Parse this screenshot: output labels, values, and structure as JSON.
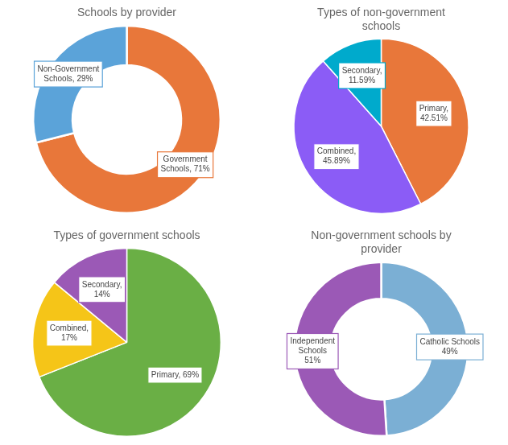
{
  "chart_data": [
    {
      "type": "doughnut",
      "title": "Schools by provider",
      "values": [
        71,
        29
      ],
      "value_labels": [
        "Government\nSchools, 71%",
        "Non-Government\nSchools, 29%"
      ],
      "data_labels": true,
      "colors": [
        "#E8773A",
        "#5BA3D9"
      ]
    },
    {
      "type": "pie",
      "title": "Types of non-government\nschools",
      "values": [
        42.51,
        45.89,
        11.59
      ],
      "value_labels": [
        "Primary,\n42.51%",
        "Combined,\n45.89%",
        "Secondary,\n11.59%"
      ],
      "data_labels": true,
      "colors": [
        "#E8773A",
        "#8B5CF6",
        "#00AACC"
      ]
    },
    {
      "type": "pie",
      "title": "Types of government schools",
      "values": [
        69,
        17,
        14
      ],
      "value_labels": [
        "Primary, 69%",
        "Combined,\n17%",
        "Secondary,\n14%"
      ],
      "data_labels": true,
      "colors": [
        "#6AAF45",
        "#F5C518",
        "#9B59B6"
      ]
    },
    {
      "type": "doughnut",
      "title": "Non-government schools by\nprovider",
      "values": [
        49,
        51
      ],
      "value_labels": [
        "Catholic Schools\n49%",
        "Independent\nSchools\n51%"
      ],
      "data_labels": true,
      "colors": [
        "#7BAFD4",
        "#9B59B6"
      ]
    }
  ]
}
